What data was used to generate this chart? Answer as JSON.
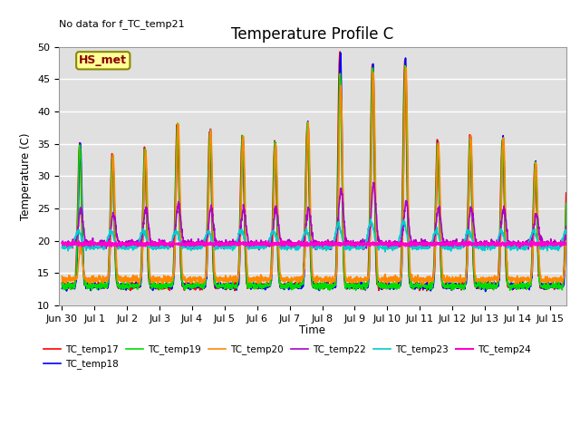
{
  "title": "Temperature Profile C",
  "no_data_text": "No data for f_TC_temp21",
  "xlabel": "Time",
  "ylabel": "Temperature (C)",
  "ylim": [
    10,
    50
  ],
  "xlim_days": [
    -0.1,
    15.5
  ],
  "xtick_labels": [
    "Jun 30",
    "Jul 1",
    "Jul 2",
    "Jul 3",
    "Jul 4",
    "Jul 5",
    "Jul 6",
    "Jul 7",
    "Jul 8",
    "Jul 9",
    "Jul 10",
    "Jul 11",
    "Jul 12",
    "Jul 13",
    "Jul 14",
    "Jul 15"
  ],
  "xtick_positions": [
    0,
    1,
    2,
    3,
    4,
    5,
    6,
    7,
    8,
    9,
    10,
    11,
    12,
    13,
    14,
    15
  ],
  "legend_label": "HS_met",
  "bg_color": "#e0e0e0",
  "series": {
    "TC_temp17": {
      "color": "#ff0000",
      "lw": 1.2
    },
    "TC_temp18": {
      "color": "#0000ff",
      "lw": 1.2
    },
    "TC_temp19": {
      "color": "#00dd00",
      "lw": 1.2
    },
    "TC_temp20": {
      "color": "#ff8800",
      "lw": 1.2
    },
    "TC_temp22": {
      "color": "#aa00cc",
      "lw": 1.2
    },
    "TC_temp23": {
      "color": "#00cccc",
      "lw": 1.2
    },
    "TC_temp24": {
      "color": "#ff00cc",
      "lw": 1.5
    }
  },
  "yticks": [
    10,
    15,
    20,
    25,
    30,
    35,
    40,
    45,
    50
  ],
  "normal_peaks": {
    "0": 35,
    "1": 33,
    "2": 34,
    "3": 38,
    "4": 37,
    "5": 36,
    "6": 35,
    "7": 38,
    "8": 49,
    "9": 47,
    "10": 48,
    "11": 35,
    "12": 36,
    "13": 36,
    "14": 32,
    "15": 32
  },
  "night_min": 13,
  "peak_sharpness": 8
}
